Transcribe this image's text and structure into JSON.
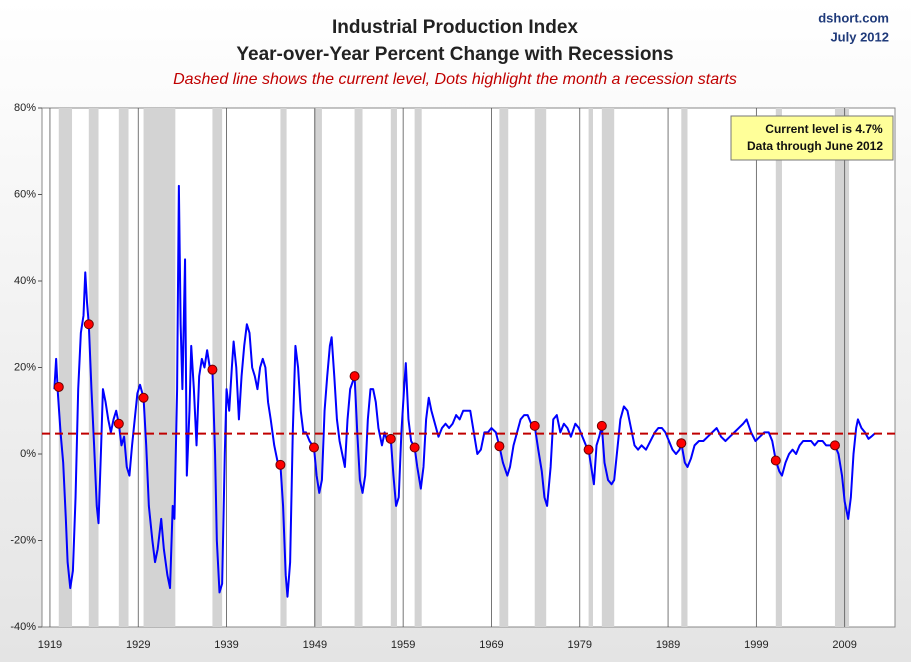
{
  "chart_data": {
    "type": "line",
    "title": "Industrial Production Index",
    "subtitle": "Year-over-Year Percent Change with Recessions",
    "note": "Dashed line shows the current level, Dots highlight the month a recession starts",
    "source": "dshort.com",
    "date": "July 2012",
    "annotations": [
      "Current level is 4.7%",
      "Data through June 2012"
    ],
    "xlim": [
      1918.1,
      2014.7
    ],
    "xticks": [
      1919,
      1929,
      1939,
      1949,
      1959,
      1969,
      1979,
      1989,
      1999,
      2009
    ],
    "xgrid": true,
    "ylim": [
      -40,
      80
    ],
    "yticks": [
      {
        "value": -40,
        "label": "-40%"
      },
      {
        "value": -20,
        "label": "-20%"
      },
      {
        "value": 0,
        "label": "0%"
      },
      {
        "value": 20,
        "label": "20%"
      },
      {
        "value": 40,
        "label": "40%"
      },
      {
        "value": 60,
        "label": "60%"
      },
      {
        "value": 80,
        "label": "80%"
      }
    ],
    "current_level": 4.7,
    "current_level_color": "#c00000",
    "recession_color": "#d3d3d3",
    "recessions": [
      [
        1920.0,
        1921.5
      ],
      [
        1923.4,
        1924.5
      ],
      [
        1926.8,
        1927.9
      ],
      [
        1929.6,
        1933.2
      ],
      [
        1937.4,
        1938.5
      ],
      [
        1945.1,
        1945.8
      ],
      [
        1948.9,
        1949.8
      ],
      [
        1953.5,
        1954.4
      ],
      [
        1957.6,
        1958.3
      ],
      [
        1960.3,
        1961.1
      ],
      [
        1969.9,
        1970.9
      ],
      [
        1973.9,
        1975.2
      ],
      [
        1980.0,
        1980.5
      ],
      [
        1981.5,
        1982.9
      ],
      [
        1990.5,
        1991.2
      ],
      [
        2001.2,
        2001.9
      ],
      [
        2007.9,
        2009.5
      ]
    ],
    "recession_starts": {
      "color": "#ff0000",
      "x": [
        1920.0,
        1923.4,
        1926.8,
        1929.6,
        1937.4,
        1945.1,
        1948.9,
        1953.5,
        1957.6,
        1960.3,
        1969.9,
        1973.9,
        1980.0,
        1981.5,
        1990.5,
        2001.2,
        2007.9
      ],
      "values": [
        15.5,
        30,
        7,
        13,
        19.5,
        -2.5,
        1.5,
        18,
        3.5,
        1.5,
        1.8,
        6.5,
        1,
        6.5,
        2.5,
        -1.5,
        2
      ]
    },
    "x": [
      1919.5,
      1919.7,
      1919.9,
      1920.2,
      1920.5,
      1920.8,
      1921.0,
      1921.3,
      1921.6,
      1921.9,
      1922.2,
      1922.5,
      1922.8,
      1923.0,
      1923.2,
      1923.4,
      1923.7,
      1924.0,
      1924.3,
      1924.5,
      1924.8,
      1925.0,
      1925.3,
      1925.6,
      1925.9,
      1926.2,
      1926.5,
      1926.8,
      1927.1,
      1927.4,
      1927.7,
      1928.0,
      1928.3,
      1928.6,
      1928.9,
      1929.2,
      1929.6,
      1929.9,
      1930.2,
      1930.6,
      1930.9,
      1931.2,
      1931.6,
      1931.9,
      1932.3,
      1932.6,
      1932.9,
      1933.1,
      1933.4,
      1933.6,
      1933.8,
      1934.0,
      1934.3,
      1934.5,
      1934.8,
      1935.0,
      1935.3,
      1935.6,
      1935.9,
      1936.2,
      1936.5,
      1936.8,
      1937.1,
      1937.4,
      1937.7,
      1937.9,
      1938.2,
      1938.5,
      1938.8,
      1939.0,
      1939.3,
      1939.6,
      1939.8,
      1940.1,
      1940.4,
      1940.7,
      1941.0,
      1941.3,
      1941.6,
      1941.9,
      1942.2,
      1942.5,
      1942.8,
      1943.1,
      1943.4,
      1943.7,
      1944.0,
      1944.4,
      1944.8,
      1945.1,
      1945.4,
      1945.7,
      1945.9,
      1946.2,
      1946.5,
      1946.8,
      1947.1,
      1947.4,
      1947.7,
      1948.0,
      1948.4,
      1948.9,
      1949.2,
      1949.5,
      1949.8,
      1950.1,
      1950.4,
      1950.7,
      1950.9,
      1951.2,
      1951.5,
      1951.8,
      1952.1,
      1952.4,
      1952.7,
      1953.0,
      1953.5,
      1953.8,
      1954.1,
      1954.4,
      1954.7,
      1955.0,
      1955.3,
      1955.6,
      1955.9,
      1956.2,
      1956.6,
      1956.9,
      1957.2,
      1957.6,
      1957.9,
      1958.2,
      1958.5,
      1958.8,
      1959.1,
      1959.3,
      1959.6,
      1959.9,
      1960.3,
      1960.6,
      1961.0,
      1961.3,
      1961.6,
      1961.9,
      1962.2,
      1962.6,
      1963.0,
      1963.4,
      1963.8,
      1964.2,
      1964.6,
      1965.0,
      1965.4,
      1965.8,
      1966.2,
      1966.6,
      1967.0,
      1967.4,
      1967.8,
      1968.2,
      1968.6,
      1969.0,
      1969.5,
      1969.9,
      1970.3,
      1970.8,
      1971.1,
      1971.5,
      1971.9,
      1972.3,
      1972.7,
      1973.1,
      1973.5,
      1973.9,
      1974.3,
      1974.7,
      1975.0,
      1975.3,
      1975.7,
      1976.0,
      1976.4,
      1976.8,
      1977.2,
      1977.6,
      1978.0,
      1978.5,
      1978.9,
      1979.3,
      1979.7,
      1980.0,
      1980.3,
      1980.6,
      1980.9,
      1981.2,
      1981.5,
      1981.8,
      1982.2,
      1982.6,
      1982.9,
      1983.2,
      1983.6,
      1984.0,
      1984.4,
      1984.8,
      1985.2,
      1985.6,
      1986.0,
      1986.5,
      1987.0,
      1987.5,
      1987.9,
      1988.3,
      1988.7,
      1989.1,
      1989.5,
      1989.9,
      1990.3,
      1990.5,
      1990.9,
      1991.2,
      1991.6,
      1992.0,
      1992.5,
      1993.0,
      1993.5,
      1994.0,
      1994.5,
      1995.0,
      1995.5,
      1996.0,
      1996.5,
      1997.0,
      1997.5,
      1997.9,
      1998.4,
      1998.9,
      1999.4,
      1999.9,
      2000.4,
      2000.8,
      2001.2,
      2001.6,
      2001.9,
      2002.3,
      2002.7,
      2003.1,
      2003.5,
      2003.9,
      2004.3,
      2004.8,
      2005.2,
      2005.6,
      2006.0,
      2006.5,
      2006.9,
      2007.3,
      2007.9,
      2008.3,
      2008.7,
      2009.0,
      2009.4,
      2009.7,
      2010.0,
      2010.3,
      2010.5,
      2010.9,
      2011.3,
      2011.7,
      2012.0,
      2012.4
    ],
    "series": [
      {
        "color": "#0000ff",
        "values": [
          15,
          22,
          14,
          5,
          -2,
          -15,
          -25,
          -31,
          -27,
          -10,
          15,
          28,
          32,
          42,
          35,
          30,
          15,
          2,
          -12,
          -16,
          2,
          15,
          12,
          8,
          5,
          8,
          10,
          7,
          2,
          4,
          -3,
          -5,
          2,
          8,
          14,
          16,
          13,
          2,
          -12,
          -20,
          -25,
          -22,
          -15,
          -22,
          -28,
          -31,
          -12,
          -15,
          15,
          62,
          30,
          15,
          45,
          -5,
          10,
          25,
          15,
          2,
          18,
          22,
          20,
          24,
          20,
          19.5,
          0,
          -20,
          -32,
          -30,
          0,
          15,
          10,
          20,
          26,
          20,
          8,
          18,
          25,
          30,
          28,
          20,
          18,
          15,
          20,
          22,
          20,
          12,
          8,
          2,
          -2,
          -2.5,
          -12,
          -28,
          -33,
          -25,
          5,
          25,
          20,
          10,
          5,
          5,
          3,
          1.5,
          -5,
          -9,
          -6,
          10,
          18,
          25,
          27,
          18,
          8,
          3,
          0,
          -3,
          8,
          15,
          18,
          5,
          -6,
          -9,
          -5,
          8,
          15,
          15,
          12,
          6,
          2,
          5,
          3,
          3.5,
          -5,
          -12,
          -10,
          5,
          15,
          21,
          8,
          3,
          1.5,
          -3,
          -8,
          -3,
          8,
          13,
          10,
          7,
          4,
          6,
          7,
          6,
          7,
          9,
          8,
          10,
          10,
          10,
          5,
          0,
          1,
          5,
          5,
          6,
          5,
          1.8,
          -2,
          -5,
          -3,
          2,
          5,
          8,
          9,
          9,
          7,
          6.5,
          1,
          -4,
          -10,
          -12,
          -3,
          8,
          9,
          5,
          7,
          6,
          4,
          7,
          6,
          4,
          2,
          1,
          -3,
          -7,
          2,
          4,
          6.5,
          -2,
          -6,
          -7,
          -6,
          0,
          8,
          11,
          10,
          6,
          2,
          1,
          2,
          1,
          3,
          5,
          6,
          6,
          5,
          3,
          1,
          0,
          1,
          2.5,
          -2,
          -3,
          -1,
          2,
          3,
          3,
          4,
          5,
          6,
          4,
          3,
          4,
          5,
          6,
          7,
          8,
          5,
          3,
          4,
          5,
          5,
          3,
          -1.5,
          -4,
          -5,
          -2,
          0,
          1,
          0,
          2,
          3,
          3,
          3,
          2,
          3,
          3,
          2,
          2,
          2,
          0,
          -5,
          -11,
          -15,
          -10,
          0,
          6,
          8,
          6,
          5,
          3.5,
          4,
          4.7
        ]
      }
    ]
  }
}
